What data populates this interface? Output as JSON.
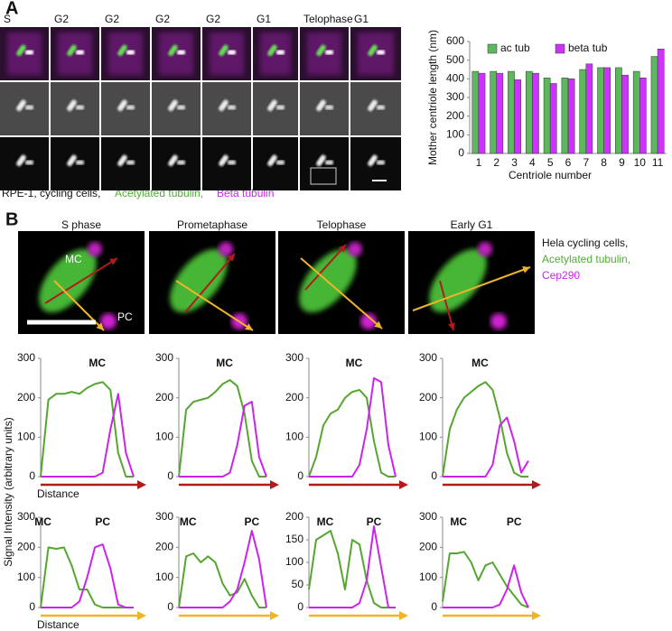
{
  "panel_a": {
    "label": "A",
    "image_labels": [
      "S",
      "G2",
      "G2",
      "G2",
      "G2",
      "G1",
      "Telophase",
      "G1"
    ],
    "caption": [
      "RPE-1, cycling cells,",
      "Acetylated tubulin,",
      "Beta tubulin"
    ]
  },
  "panel_b": {
    "label": "B",
    "image_labels": [
      "S phase",
      "Prometaphase",
      "Telophase",
      "Early G1"
    ],
    "image_annotations": [
      "MC",
      "PC"
    ],
    "side_text": [
      "Hela cycling cells,",
      "Acetylated tubulin,",
      "Cep290"
    ],
    "y_label": "Signal Intensity (arbitrary units)"
  },
  "chart_data": [
    {
      "type": "bar",
      "y_label": "Mother centriole length (nm)",
      "x_label": "Centriole number",
      "categories": [
        "1",
        "2",
        "3",
        "4",
        "5",
        "6",
        "7",
        "8",
        "9",
        "10",
        "11"
      ],
      "series": [
        {
          "name": "ac tub",
          "color": "#5cb85c",
          "values": [
            440,
            440,
            440,
            440,
            405,
            405,
            450,
            460,
            460,
            440,
            520
          ]
        },
        {
          "name": "beta tub",
          "color": "#cc33ff",
          "values": [
            430,
            430,
            395,
            430,
            375,
            400,
            480,
            460,
            420,
            405,
            560
          ]
        }
      ],
      "ylim": [
        0,
        600
      ],
      "yticks": [
        0,
        100,
        200,
        300,
        400,
        500,
        600
      ],
      "legend": "top"
    },
    {
      "type": "line",
      "x_label": "Distance",
      "annotations": [
        "MC"
      ],
      "arrow_color": "#b01c1c",
      "categories": [
        null,
        null,
        null,
        null,
        null,
        null,
        null,
        null,
        null,
        null,
        null,
        null,
        null
      ],
      "series": [
        {
          "color": "#55a630",
          "values": [
            0,
            195,
            210,
            210,
            215,
            210,
            225,
            235,
            240,
            220,
            60,
            0,
            0
          ]
        },
        {
          "color": "#cc22ee",
          "values": [
            0,
            0,
            0,
            0,
            0,
            0,
            0,
            0,
            10,
            120,
            210,
            60,
            0
          ]
        }
      ],
      "ylim": [
        0,
        300
      ],
      "yticks": [
        0,
        100,
        200,
        300
      ]
    },
    {
      "type": "line",
      "annotations": [
        "MC"
      ],
      "arrow_color": "#b01c1c",
      "categories": [
        null,
        null,
        null,
        null,
        null,
        null,
        null,
        null,
        null,
        null,
        null,
        null,
        null
      ],
      "series": [
        {
          "color": "#55a630",
          "values": [
            0,
            170,
            190,
            195,
            200,
            215,
            235,
            245,
            230,
            160,
            40,
            0,
            0
          ]
        },
        {
          "color": "#cc22ee",
          "values": [
            0,
            0,
            0,
            0,
            0,
            0,
            0,
            10,
            80,
            180,
            190,
            50,
            0
          ]
        }
      ],
      "ylim": [
        0,
        300
      ],
      "yticks": [
        0,
        100,
        200,
        300
      ]
    },
    {
      "type": "line",
      "annotations": [
        "MC"
      ],
      "arrow_color": "#b01c1c",
      "categories": [
        null,
        null,
        null,
        null,
        null,
        null,
        null,
        null,
        null,
        null,
        null,
        null,
        null
      ],
      "series": [
        {
          "color": "#55a630",
          "values": [
            0,
            50,
            130,
            160,
            170,
            200,
            215,
            220,
            200,
            90,
            10,
            0,
            0
          ]
        },
        {
          "color": "#cc22ee",
          "values": [
            0,
            0,
            0,
            0,
            0,
            0,
            0,
            30,
            120,
            250,
            240,
            80,
            0
          ]
        }
      ],
      "ylim": [
        0,
        300
      ],
      "yticks": [
        0,
        100,
        200,
        300
      ]
    },
    {
      "type": "line",
      "annotations": [
        "MC"
      ],
      "arrow_color": "#b01c1c",
      "categories": [
        null,
        null,
        null,
        null,
        null,
        null,
        null,
        null,
        null,
        null,
        null,
        null,
        null
      ],
      "series": [
        {
          "color": "#55a630",
          "values": [
            0,
            120,
            170,
            200,
            215,
            230,
            240,
            220,
            150,
            60,
            10,
            0,
            0
          ]
        },
        {
          "color": "#cc22ee",
          "values": [
            0,
            0,
            0,
            0,
            0,
            0,
            0,
            30,
            130,
            150,
            90,
            10,
            40
          ]
        }
      ],
      "ylim": [
        0,
        300
      ],
      "yticks": [
        0,
        100,
        200,
        300
      ]
    },
    {
      "type": "line",
      "x_label": "Distance",
      "annotations": [
        "MC",
        "PC"
      ],
      "arrow_color": "#f0b429",
      "categories": [
        null,
        null,
        null,
        null,
        null,
        null,
        null,
        null,
        null,
        null,
        null,
        null,
        null
      ],
      "series": [
        {
          "color": "#55a630",
          "values": [
            0,
            200,
            195,
            200,
            140,
            60,
            60,
            10,
            0,
            0,
            0,
            0,
            0
          ]
        },
        {
          "color": "#cc22ee",
          "values": [
            0,
            0,
            0,
            0,
            0,
            20,
            100,
            200,
            210,
            130,
            10,
            0,
            0
          ]
        }
      ],
      "ylim": [
        0,
        300
      ],
      "yticks": [
        0,
        100,
        200,
        300
      ]
    },
    {
      "type": "line",
      "annotations": [
        "MC",
        "PC"
      ],
      "arrow_color": "#f0b429",
      "categories": [
        null,
        null,
        null,
        null,
        null,
        null,
        null,
        null,
        null,
        null,
        null,
        null,
        null
      ],
      "series": [
        {
          "color": "#55a630",
          "values": [
            0,
            170,
            180,
            150,
            170,
            150,
            80,
            40,
            50,
            95,
            40,
            0,
            0
          ]
        },
        {
          "color": "#cc22ee",
          "values": [
            0,
            0,
            0,
            0,
            0,
            0,
            0,
            20,
            60,
            150,
            255,
            160,
            0
          ]
        }
      ],
      "ylim": [
        0,
        300
      ],
      "yticks": [
        0,
        100,
        200,
        300
      ]
    },
    {
      "type": "line",
      "annotations": [
        "MC",
        "PC"
      ],
      "arrow_color": "#f0b429",
      "categories": [
        null,
        null,
        null,
        null,
        null,
        null,
        null,
        null,
        null,
        null,
        null,
        null,
        null
      ],
      "series": [
        {
          "color": "#55a630",
          "values": [
            40,
            150,
            160,
            170,
            120,
            40,
            150,
            140,
            60,
            10,
            0,
            0,
            0
          ]
        },
        {
          "color": "#cc22ee",
          "values": [
            0,
            0,
            0,
            0,
            0,
            0,
            0,
            10,
            60,
            180,
            90,
            0,
            0
          ]
        }
      ],
      "ylim": [
        0,
        200
      ],
      "yticks": [
        0,
        50,
        100,
        150,
        200
      ]
    },
    {
      "type": "line",
      "annotations": [
        "MC",
        "PC"
      ],
      "arrow_color": "#f0b429",
      "categories": [
        null,
        null,
        null,
        null,
        null,
        null,
        null,
        null,
        null,
        null,
        null,
        null,
        null
      ],
      "series": [
        {
          "color": "#55a630",
          "values": [
            20,
            180,
            180,
            185,
            150,
            90,
            140,
            150,
            110,
            70,
            40,
            10,
            0
          ]
        },
        {
          "color": "#cc22ee",
          "values": [
            0,
            0,
            0,
            0,
            0,
            0,
            0,
            0,
            10,
            60,
            140,
            50,
            0
          ]
        }
      ],
      "ylim": [
        0,
        300
      ],
      "yticks": [
        0,
        100,
        200,
        300
      ]
    }
  ]
}
